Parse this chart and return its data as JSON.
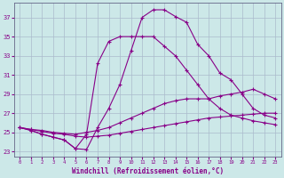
{
  "xlabel": "Windchill (Refroidissement éolien,°C)",
  "background_color": "#cce8e8",
  "grid_color": "#aabbcc",
  "line_color": "#880088",
  "xlim": [
    -0.5,
    23.5
  ],
  "ylim": [
    22.5,
    38.5
  ],
  "yticks": [
    23,
    25,
    27,
    29,
    31,
    33,
    35,
    37
  ],
  "xticks": [
    0,
    1,
    2,
    3,
    4,
    5,
    6,
    7,
    8,
    9,
    10,
    11,
    12,
    13,
    14,
    15,
    16,
    17,
    18,
    19,
    20,
    21,
    22,
    23
  ],
  "series": [
    {
      "x": [
        0,
        1,
        2,
        3,
        4,
        5,
        6,
        7,
        8,
        9,
        10,
        11,
        12,
        13,
        14,
        15,
        16,
        17,
        18,
        19,
        20,
        21,
        22,
        23
      ],
      "y": [
        25.5,
        25.2,
        24.8,
        24.5,
        24.2,
        23.3,
        23.2,
        25.5,
        27.5,
        30.0,
        33.5,
        37.0,
        37.8,
        37.8,
        37.1,
        36.5,
        34.2,
        33.0,
        31.2,
        30.5,
        29.0,
        27.5,
        26.8,
        26.5
      ]
    },
    {
      "x": [
        0,
        1,
        2,
        3,
        4,
        5,
        6,
        7,
        8,
        9,
        10,
        11,
        12,
        13,
        14,
        15,
        16,
        17,
        18,
        19,
        20,
        21,
        22,
        23
      ],
      "y": [
        25.5,
        25.2,
        24.8,
        24.5,
        24.2,
        23.3,
        24.8,
        32.2,
        34.5,
        35.0,
        35.0,
        35.0,
        35.0,
        34.0,
        33.0,
        31.5,
        30.0,
        28.5,
        27.5,
        26.8,
        26.5,
        26.2,
        26.0,
        25.8
      ]
    },
    {
      "x": [
        0,
        1,
        2,
        3,
        4,
        5,
        6,
        7,
        8,
        9,
        10,
        11,
        12,
        13,
        14,
        15,
        16,
        17,
        18,
        19,
        20,
        21,
        22,
        23
      ],
      "y": [
        25.5,
        25.3,
        25.2,
        25.0,
        24.9,
        24.8,
        25.0,
        25.2,
        25.5,
        26.0,
        26.5,
        27.0,
        27.5,
        28.0,
        28.3,
        28.5,
        28.5,
        28.5,
        28.8,
        29.0,
        29.2,
        29.5,
        29.0,
        28.5
      ]
    },
    {
      "x": [
        0,
        1,
        2,
        3,
        4,
        5,
        6,
        7,
        8,
        9,
        10,
        11,
        12,
        13,
        14,
        15,
        16,
        17,
        18,
        19,
        20,
        21,
        22,
        23
      ],
      "y": [
        25.5,
        25.3,
        25.1,
        24.9,
        24.8,
        24.6,
        24.5,
        24.6,
        24.7,
        24.9,
        25.1,
        25.3,
        25.5,
        25.7,
        25.9,
        26.1,
        26.3,
        26.5,
        26.6,
        26.7,
        26.8,
        26.9,
        27.0,
        27.0
      ]
    }
  ]
}
